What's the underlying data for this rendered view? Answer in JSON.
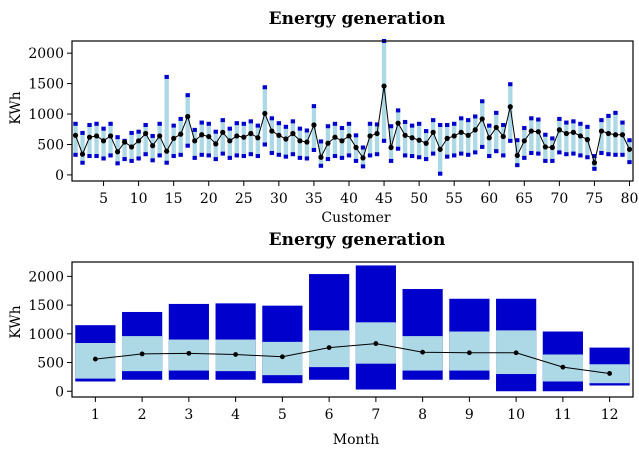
{
  "colors": {
    "light_band": "#add8e6",
    "dark_band": "#0000cd",
    "mean_line": "#000000"
  },
  "chart_data": [
    {
      "type": "bar",
      "title": "Energy generation",
      "xlabel": "Customer",
      "ylabel": "KWh",
      "xlim": [
        0.5,
        80.5
      ],
      "ylim": [
        -100,
        2200
      ],
      "xticks": [
        5,
        10,
        15,
        20,
        25,
        30,
        35,
        40,
        45,
        50,
        55,
        60,
        65,
        70,
        75,
        80
      ],
      "yticks": [
        0,
        500,
        1000,
        1500,
        2000
      ],
      "x": [
        1,
        2,
        3,
        4,
        5,
        6,
        7,
        8,
        9,
        10,
        11,
        12,
        13,
        14,
        15,
        16,
        17,
        18,
        19,
        20,
        21,
        22,
        23,
        24,
        25,
        26,
        27,
        28,
        29,
        30,
        31,
        32,
        33,
        34,
        35,
        36,
        37,
        38,
        39,
        40,
        41,
        42,
        43,
        44,
        45,
        46,
        47,
        48,
        49,
        50,
        51,
        52,
        53,
        54,
        55,
        56,
        57,
        58,
        59,
        60,
        61,
        62,
        63,
        64,
        65,
        66,
        67,
        68,
        69,
        70,
        71,
        72,
        73,
        74,
        75,
        76,
        77,
        78,
        79,
        80
      ],
      "mean": [
        650,
        340,
        620,
        640,
        560,
        640,
        380,
        540,
        460,
        560,
        680,
        480,
        640,
        390,
        600,
        670,
        960,
        560,
        660,
        630,
        510,
        700,
        560,
        640,
        620,
        680,
        610,
        1010,
        720,
        650,
        590,
        680,
        560,
        540,
        820,
        290,
        520,
        620,
        560,
        640,
        450,
        280,
        640,
        680,
        1460,
        450,
        850,
        650,
        610,
        570,
        520,
        700,
        420,
        600,
        640,
        700,
        650,
        740,
        920,
        610,
        780,
        630,
        1120,
        320,
        560,
        720,
        710,
        460,
        450,
        740,
        680,
        700,
        640,
        580,
        200,
        720,
        680,
        660,
        660,
        420
      ],
      "min": [
        330,
        200,
        310,
        310,
        270,
        320,
        190,
        260,
        230,
        270,
        340,
        240,
        320,
        200,
        310,
        330,
        480,
        280,
        330,
        320,
        260,
        350,
        280,
        320,
        310,
        340,
        310,
        500,
        360,
        330,
        300,
        340,
        280,
        270,
        410,
        150,
        260,
        310,
        280,
        320,
        230,
        140,
        320,
        340,
        560,
        230,
        430,
        320,
        310,
        290,
        260,
        350,
        20,
        300,
        320,
        350,
        330,
        370,
        460,
        310,
        390,
        320,
        560,
        160,
        280,
        360,
        350,
        230,
        230,
        370,
        340,
        350,
        320,
        290,
        100,
        360,
        340,
        330,
        330,
        210
      ],
      "max": [
        840,
        690,
        820,
        840,
        760,
        840,
        620,
        560,
        690,
        710,
        820,
        640,
        840,
        1610,
        810,
        920,
        1310,
        740,
        860,
        840,
        710,
        900,
        760,
        850,
        840,
        880,
        810,
        1440,
        930,
        850,
        790,
        880,
        760,
        730,
        1130,
        550,
        800,
        840,
        770,
        840,
        650,
        450,
        840,
        830,
        2200,
        800,
        1060,
        870,
        810,
        840,
        720,
        900,
        820,
        820,
        840,
        930,
        900,
        960,
        1210,
        810,
        1020,
        820,
        1490,
        570,
        770,
        930,
        910,
        660,
        600,
        920,
        860,
        880,
        840,
        790,
        310,
        900,
        970,
        1020,
        860,
        570
      ]
    },
    {
      "type": "bar",
      "title": "Energy generation",
      "xlabel": "Month",
      "ylabel": "KWh",
      "xlim": [
        0.5,
        12.5
      ],
      "ylim": [
        -100,
        2250
      ],
      "xticks": [
        1,
        2,
        3,
        4,
        5,
        6,
        7,
        8,
        9,
        10,
        11,
        12
      ],
      "yticks": [
        0,
        500,
        1000,
        1500,
        2000
      ],
      "x": [
        1,
        2,
        3,
        4,
        5,
        6,
        7,
        8,
        9,
        10,
        11,
        12
      ],
      "mean": [
        560,
        650,
        660,
        640,
        600,
        760,
        830,
        680,
        670,
        670,
        420,
        310
      ],
      "min": [
        170,
        200,
        200,
        200,
        140,
        200,
        30,
        200,
        200,
        0,
        0,
        100
      ],
      "q_low": [
        220,
        350,
        360,
        350,
        280,
        420,
        480,
        360,
        360,
        300,
        170,
        140
      ],
      "q_high": [
        840,
        960,
        900,
        900,
        860,
        1060,
        1200,
        960,
        1040,
        1060,
        640,
        470
      ],
      "max": [
        1150,
        1380,
        1520,
        1530,
        1490,
        2040,
        2190,
        1780,
        1610,
        1610,
        1040,
        760
      ]
    }
  ]
}
